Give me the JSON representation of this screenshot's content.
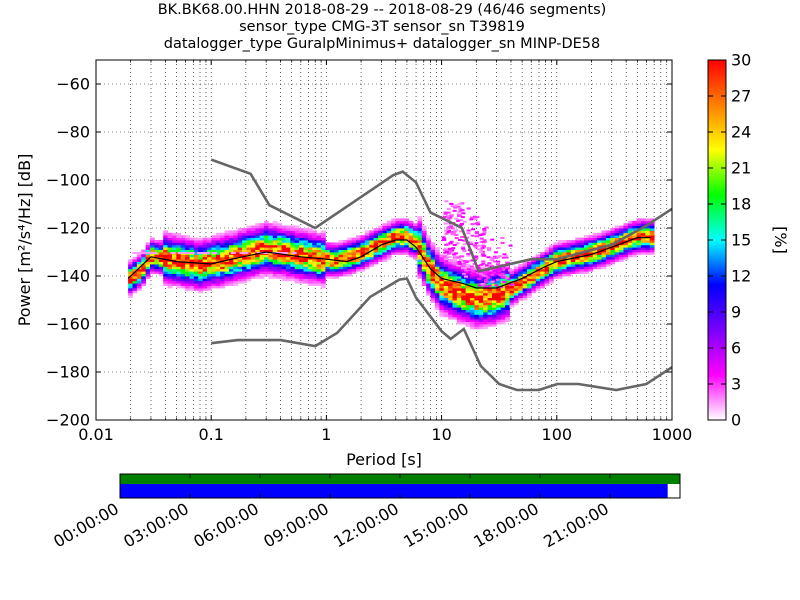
{
  "title_lines": [
    "BK.BK68.00.HHN   2018-08-29 -- 2018-08-29  (46/46 segments)",
    "sensor_type CMG-3T sensor_sn T39819",
    "datalogger_type GuralpMinimus+ datalogger_sn MINP-DE58"
  ],
  "chart_data": {
    "type": "heatmap",
    "xlabel": "Period [s]",
    "ylabel": "Power [m²/s⁴/Hz] [dB]",
    "xscale": "log",
    "xlim": [
      0.01,
      1000
    ],
    "ylim": [
      -200,
      -50
    ],
    "xticks": [
      {
        "v": 0.01,
        "label": "0.01"
      },
      {
        "v": 0.1,
        "label": "0.1"
      },
      {
        "v": 1,
        "label": "1"
      },
      {
        "v": 10,
        "label": "10"
      },
      {
        "v": 100,
        "label": "100"
      },
      {
        "v": 1000,
        "label": "1000"
      }
    ],
    "yticks": [
      {
        "v": -60,
        "label": "−60"
      },
      {
        "v": -80,
        "label": "−80"
      },
      {
        "v": -100,
        "label": "−100"
      },
      {
        "v": -120,
        "label": "−120"
      },
      {
        "v": -140,
        "label": "−140"
      },
      {
        "v": -160,
        "label": "−160"
      },
      {
        "v": -180,
        "label": "−180"
      },
      {
        "v": -200,
        "label": "−200"
      }
    ],
    "grid": true,
    "colorbar": {
      "label": "[%]",
      "min": 0,
      "max": 30,
      "ticks": [
        0,
        3,
        6,
        9,
        12,
        15,
        18,
        21,
        24,
        27,
        30
      ],
      "colormap": [
        "#ffffff",
        "#ff00ff",
        "#7a00ff",
        "#0000ff",
        "#00ffff",
        "#00ff00",
        "#ffff00",
        "#ff8000",
        "#ff0000"
      ]
    },
    "noise_model_high": [
      [
        0.1,
        -91.5
      ],
      [
        0.22,
        -97.4
      ],
      [
        0.32,
        -110.5
      ],
      [
        0.8,
        -120
      ],
      [
        3.8,
        -98
      ],
      [
        4.6,
        -96.5
      ],
      [
        6,
        -101
      ],
      [
        8,
        -113.5
      ],
      [
        15,
        -120
      ],
      [
        21,
        -138
      ],
      [
        60,
        -133
      ],
      [
        100,
        -133
      ],
      [
        300,
        -127
      ],
      [
        600,
        -119
      ],
      [
        1000,
        -112
      ]
    ],
    "noise_model_low": [
      [
        0.1,
        -168
      ],
      [
        0.17,
        -166.7
      ],
      [
        0.4,
        -166.7
      ],
      [
        0.8,
        -169.2
      ],
      [
        1.24,
        -163.7
      ],
      [
        2.4,
        -148.7
      ],
      [
        4.3,
        -141.5
      ],
      [
        5,
        -141.1
      ],
      [
        6,
        -149
      ],
      [
        10,
        -163
      ],
      [
        12,
        -166.2
      ],
      [
        15.6,
        -162.1
      ],
      [
        21.9,
        -177.5
      ],
      [
        31.6,
        -185
      ],
      [
        45,
        -187.5
      ],
      [
        70,
        -187.5
      ],
      [
        101,
        -185
      ],
      [
        154,
        -185
      ],
      [
        328,
        -187.5
      ],
      [
        600,
        -185
      ],
      [
        1000,
        -178
      ]
    ],
    "mode": [
      [
        0.019,
        -142
      ],
      [
        0.025,
        -138
      ],
      [
        0.03,
        -132
      ],
      [
        0.05,
        -134
      ],
      [
        0.08,
        -136
      ],
      [
        0.15,
        -133
      ],
      [
        0.3,
        -129
      ],
      [
        0.5,
        -131
      ],
      [
        0.8,
        -133
      ],
      [
        1.2,
        -134
      ],
      [
        2,
        -131
      ],
      [
        3,
        -127
      ],
      [
        4,
        -124
      ],
      [
        5,
        -124
      ],
      [
        6,
        -126
      ],
      [
        8,
        -138
      ],
      [
        10,
        -144
      ],
      [
        15,
        -148
      ],
      [
        20,
        -150
      ],
      [
        30,
        -149
      ],
      [
        50,
        -143
      ],
      [
        80,
        -137
      ],
      [
        100,
        -134
      ],
      [
        200,
        -131
      ],
      [
        300,
        -128
      ],
      [
        500,
        -124
      ],
      [
        650,
        -124
      ]
    ],
    "mean": [
      [
        0.019,
        -141
      ],
      [
        0.03,
        -132
      ],
      [
        0.05,
        -134
      ],
      [
        0.1,
        -135
      ],
      [
        0.15,
        -133
      ],
      [
        0.3,
        -130
      ],
      [
        0.6,
        -132
      ],
      [
        1,
        -133
      ],
      [
        1.5,
        -134
      ],
      [
        2,
        -132
      ],
      [
        3,
        -127
      ],
      [
        4,
        -125
      ],
      [
        5,
        -125
      ],
      [
        6,
        -128
      ],
      [
        8,
        -137
      ],
      [
        10,
        -141
      ],
      [
        15,
        -143
      ],
      [
        20,
        -145
      ],
      [
        30,
        -145
      ],
      [
        50,
        -141
      ],
      [
        80,
        -136
      ],
      [
        100,
        -134
      ],
      [
        200,
        -131
      ],
      [
        300,
        -128
      ],
      [
        500,
        -124
      ],
      [
        650,
        -124
      ]
    ],
    "scatter_spread": [
      [
        10,
        -130,
        -108
      ],
      [
        12,
        -135,
        -108
      ],
      [
        15,
        -138,
        -111
      ],
      [
        20,
        -143,
        -115
      ],
      [
        25,
        -145,
        -123
      ],
      [
        40,
        -142,
        -130
      ]
    ]
  },
  "timeline": {
    "tick_labels": [
      "00:00:00",
      "03:00:00",
      "06:00:00",
      "09:00:00",
      "12:00:00",
      "15:00:00",
      "18:00:00",
      "21:00:00"
    ],
    "coverage": 0.978,
    "colors": {
      "top": "#008000",
      "bottom": "#0000ff"
    }
  }
}
